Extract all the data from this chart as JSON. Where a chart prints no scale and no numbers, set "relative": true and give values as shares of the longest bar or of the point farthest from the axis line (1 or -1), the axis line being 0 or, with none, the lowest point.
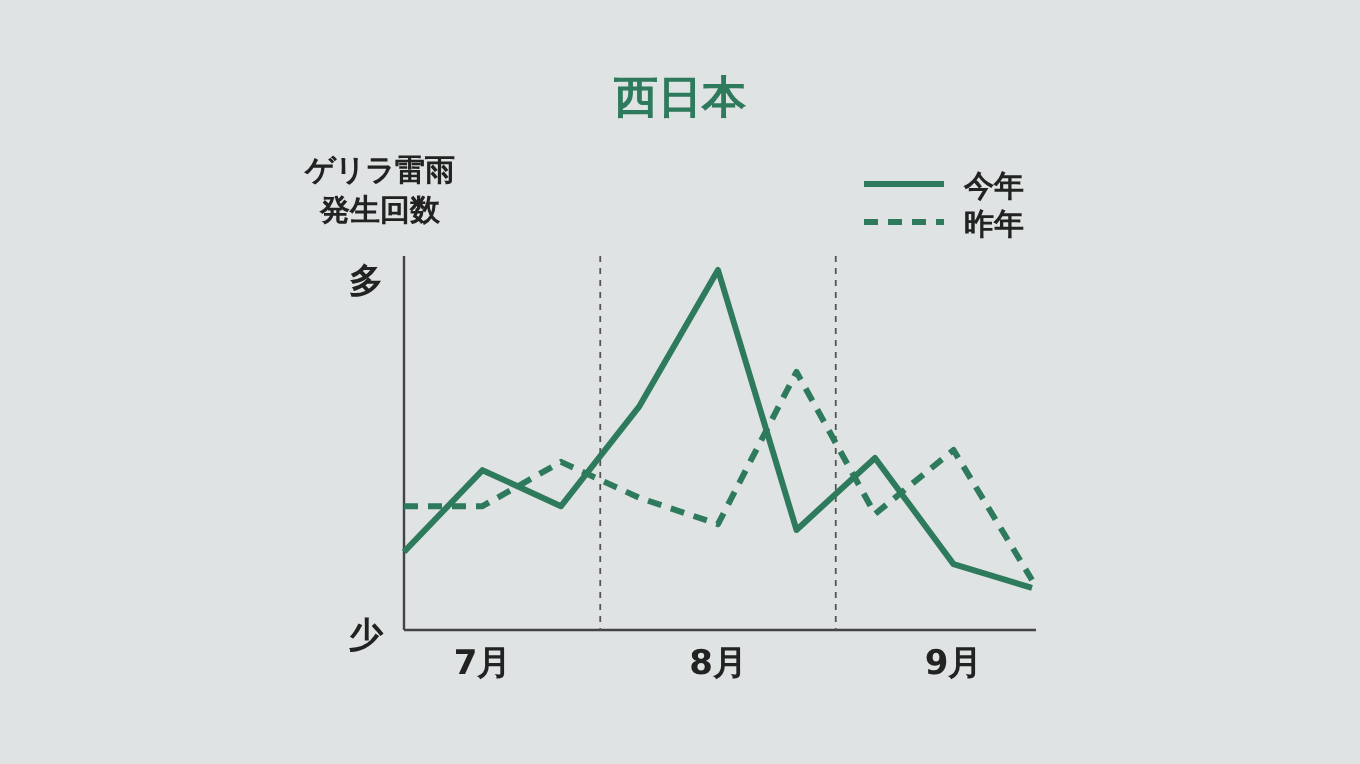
{
  "chart_data": {
    "type": "line",
    "title": "西日本",
    "ylabel": "ゲリラ雷雨発生回数",
    "relative": true,
    "legend": "top right",
    "categories": [
      null,
      "7月",
      null,
      null,
      "8月",
      null,
      null,
      "9月",
      null
    ],
    "annotations": [
      "多",
      "少"
    ],
    "series": [
      {
        "name": "今年",
        "color": "#2e7a5c",
        "line_style": "solid",
        "values": [
          0.217,
          0.444,
          0.344,
          0.622,
          1.0,
          0.278,
          0.478,
          0.183,
          0.117
        ]
      },
      {
        "name": "昨年",
        "color": "#2e7a5c",
        "line_style": "dashed",
        "values": [
          0.344,
          0.344,
          0.467,
          0.367,
          0.294,
          0.717,
          0.322,
          0.5,
          0.139
        ]
      }
    ]
  }
}
